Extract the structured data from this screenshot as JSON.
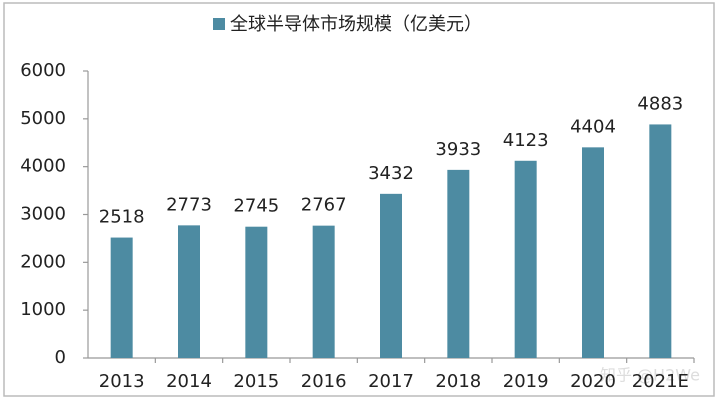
{
  "chart_data": {
    "type": "bar",
    "series": [
      {
        "name": "全球半导体市场规模（亿美元）",
        "color": "#4d8ba2",
        "values": [
          2518,
          2773,
          2745,
          2767,
          3432,
          3933,
          4123,
          4404,
          4883
        ]
      }
    ],
    "categories": [
      "2013",
      "2014",
      "2015",
      "2016",
      "2017",
      "2018",
      "2019",
      "2020",
      "2021E"
    ],
    "ylim": [
      0,
      6000
    ],
    "yticks": [
      0,
      1000,
      2000,
      3000,
      4000,
      5000,
      6000
    ],
    "grid": false,
    "legend": "top"
  },
  "watermark": "知乎 @H2We"
}
